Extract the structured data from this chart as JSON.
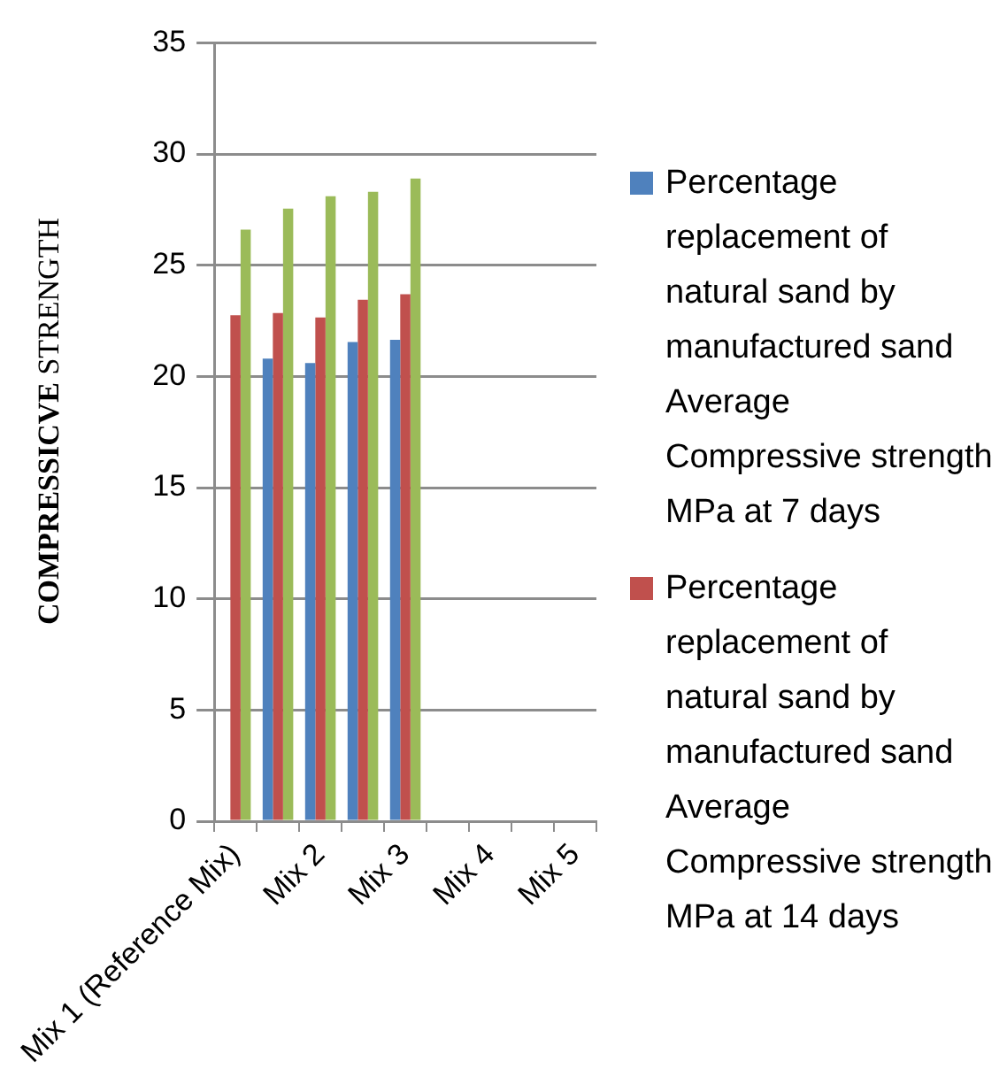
{
  "chart_data": {
    "type": "bar",
    "ylabel": "COMPRESSICVE STRENGTH",
    "categories": [
      "Mix 1 (Reference Mix)",
      null,
      "Mix 2",
      null,
      "Mix 3",
      null,
      "Mix 4",
      null,
      "Mix 5"
    ],
    "series": [
      {
        "name": "Percentage replacement of natural sand by manufactured sand Average Compressive strength MPa at 7 days",
        "color": "#4f81bd",
        "values": [
          null,
          20.8,
          20.6,
          21.55,
          21.65,
          null,
          null,
          null,
          null
        ]
      },
      {
        "name": "Percentage replacement of natural sand by manufactured sand Average Compressive strength MPa at 14 days",
        "color": "#c0504d",
        "values": [
          22.75,
          22.85,
          22.65,
          23.45,
          23.7,
          null,
          null,
          null,
          null
        ]
      },
      {
        "color": "#9bbb59",
        "values": [
          26.6,
          27.55,
          28.1,
          28.3,
          28.9,
          null,
          null,
          null,
          null
        ]
      }
    ],
    "ylim": [
      0,
      35
    ],
    "yticks": [
      0,
      5,
      10,
      15,
      20,
      25,
      30,
      35
    ],
    "grid": "y",
    "legend": "right"
  }
}
